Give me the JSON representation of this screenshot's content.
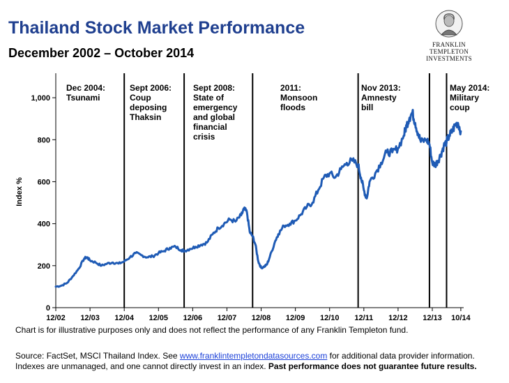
{
  "header": {
    "title": "Thailand Stock Market Performance",
    "subtitle": "December 2002 – October 2014"
  },
  "logo": {
    "line1": "FRANKLIN TEMPLETON",
    "line2": "INVESTMENTS",
    "icon": "franklin-portrait-icon"
  },
  "colors": {
    "series": "#1f5bb5",
    "title": "#1f3f8f",
    "link": "#1a3fd8"
  },
  "chart_data": {
    "type": "line",
    "title": "Thailand Stock Market Performance",
    "xlabel": "",
    "ylabel": "Index %",
    "ylim": [
      0,
      1100
    ],
    "xlim": [
      0,
      143
    ],
    "x_unit": "months since December 2002",
    "yticks": [
      {
        "value": 0,
        "label": "0"
      },
      {
        "value": 200,
        "label": "200"
      },
      {
        "value": 400,
        "label": "400"
      },
      {
        "value": 600,
        "label": "600"
      },
      {
        "value": 800,
        "label": "800"
      },
      {
        "value": 1000,
        "label": "1,000"
      }
    ],
    "xticks": [
      {
        "value": 0,
        "label": "12/02"
      },
      {
        "value": 12,
        "label": "12/03"
      },
      {
        "value": 24,
        "label": "12/04"
      },
      {
        "value": 36,
        "label": "12/05"
      },
      {
        "value": 48,
        "label": "12/06"
      },
      {
        "value": 60,
        "label": "12/07"
      },
      {
        "value": 72,
        "label": "12/08"
      },
      {
        "value": 84,
        "label": "12/09"
      },
      {
        "value": 96,
        "label": "12/10"
      },
      {
        "value": 108,
        "label": "12/11"
      },
      {
        "value": 120,
        "label": "12/12"
      },
      {
        "value": 132,
        "label": "12/13"
      },
      {
        "value": 142,
        "label": "10/14"
      }
    ],
    "events": [
      {
        "x": 24,
        "label_lines": [
          "Dec 2004:",
          "Tsunami"
        ]
      },
      {
        "x": 45,
        "label_lines": [
          "Sept 2006:",
          "Coup",
          "deposing",
          "Thaksin"
        ]
      },
      {
        "x": 69,
        "label_lines": [
          "Sept 2008:",
          "State of",
          "emergency",
          "and global",
          "financial",
          "crisis"
        ]
      },
      {
        "x": 106,
        "label_lines": [
          "2011:",
          "Monsoon",
          "floods"
        ]
      },
      {
        "x": 131,
        "label_lines": [
          "Nov 2013:",
          "Amnesty",
          "bill"
        ]
      },
      {
        "x": 137,
        "label_lines": [
          "May 2014:",
          "Military",
          "coup"
        ]
      }
    ],
    "series": [
      {
        "name": "MSCI Thailand Index",
        "points": [
          [
            0,
            100
          ],
          [
            2,
            105
          ],
          [
            4,
            118
          ],
          [
            6,
            150
          ],
          [
            8,
            185
          ],
          [
            10,
            235
          ],
          [
            11,
            240
          ],
          [
            12,
            225
          ],
          [
            14,
            215
          ],
          [
            16,
            200
          ],
          [
            18,
            210
          ],
          [
            20,
            215
          ],
          [
            22,
            210
          ],
          [
            24,
            220
          ],
          [
            26,
            240
          ],
          [
            28,
            260
          ],
          [
            30,
            250
          ],
          [
            32,
            240
          ],
          [
            34,
            245
          ],
          [
            36,
            260
          ],
          [
            38,
            270
          ],
          [
            40,
            285
          ],
          [
            42,
            290
          ],
          [
            44,
            275
          ],
          [
            45,
            270
          ],
          [
            47,
            280
          ],
          [
            49,
            290
          ],
          [
            51,
            300
          ],
          [
            53,
            310
          ],
          [
            55,
            350
          ],
          [
            57,
            380
          ],
          [
            59,
            400
          ],
          [
            61,
            420
          ],
          [
            63,
            410
          ],
          [
            65,
            440
          ],
          [
            66,
            470
          ],
          [
            67,
            455
          ],
          [
            68,
            360
          ],
          [
            69,
            340
          ],
          [
            70,
            300
          ],
          [
            71,
            220
          ],
          [
            72,
            190
          ],
          [
            73,
            195
          ],
          [
            74,
            205
          ],
          [
            75,
            240
          ],
          [
            77,
            320
          ],
          [
            78,
            350
          ],
          [
            80,
            390
          ],
          [
            82,
            400
          ],
          [
            84,
            415
          ],
          [
            86,
            445
          ],
          [
            88,
            480
          ],
          [
            90,
            500
          ],
          [
            92,
            560
          ],
          [
            94,
            620
          ],
          [
            96,
            640
          ],
          [
            98,
            620
          ],
          [
            100,
            660
          ],
          [
            102,
            690
          ],
          [
            104,
            700
          ],
          [
            106,
            680
          ],
          [
            107,
            620
          ],
          [
            108,
            560
          ],
          [
            109,
            520
          ],
          [
            110,
            600
          ],
          [
            112,
            640
          ],
          [
            114,
            690
          ],
          [
            116,
            740
          ],
          [
            118,
            740
          ],
          [
            120,
            760
          ],
          [
            122,
            820
          ],
          [
            123,
            870
          ],
          [
            124,
            905
          ],
          [
            125,
            930
          ],
          [
            126,
            880
          ],
          [
            127,
            830
          ],
          [
            128,
            790
          ],
          [
            130,
            800
          ],
          [
            131,
            780
          ],
          [
            132,
            690
          ],
          [
            133,
            680
          ],
          [
            134,
            700
          ],
          [
            135,
            730
          ],
          [
            136,
            770
          ],
          [
            137,
            790
          ],
          [
            138,
            820
          ],
          [
            139,
            840
          ],
          [
            140,
            870
          ],
          [
            141,
            880
          ],
          [
            142,
            840
          ]
        ]
      }
    ]
  },
  "footnote": "Chart is for illustrative purposes only and does not reflect the performance of any Franklin Templeton fund.",
  "source": {
    "prefix": "Source: FactSet, MSCI Thailand Index.  See ",
    "link": "www.franklintempletondatasources.com",
    "suffix": " for additional data provider information. Indexes are unmanaged, and one cannot directly invest in an index. ",
    "bold": "Past performance does not guarantee future results."
  }
}
